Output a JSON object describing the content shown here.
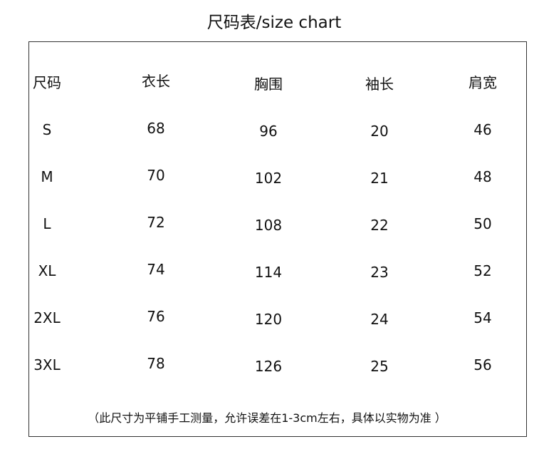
{
  "title": "尺码表/size chart",
  "table": {
    "headers": [
      "尺码",
      "衣长",
      "胸围",
      "袖长",
      "肩宽"
    ],
    "rows": [
      [
        "S",
        "68",
        "96",
        "20",
        "46"
      ],
      [
        "M",
        "70",
        "102",
        "21",
        "48"
      ],
      [
        "L",
        "72",
        "108",
        "22",
        "50"
      ],
      [
        "XL",
        "74",
        "114",
        "23",
        "52"
      ],
      [
        "2XL",
        "76",
        "120",
        "24",
        "54"
      ],
      [
        "3XL",
        "78",
        "126",
        "25",
        "56"
      ]
    ]
  },
  "note": "（此尺寸为平铺手工测量，允许误差在1-3cm左右，具体以实物为准 ）"
}
